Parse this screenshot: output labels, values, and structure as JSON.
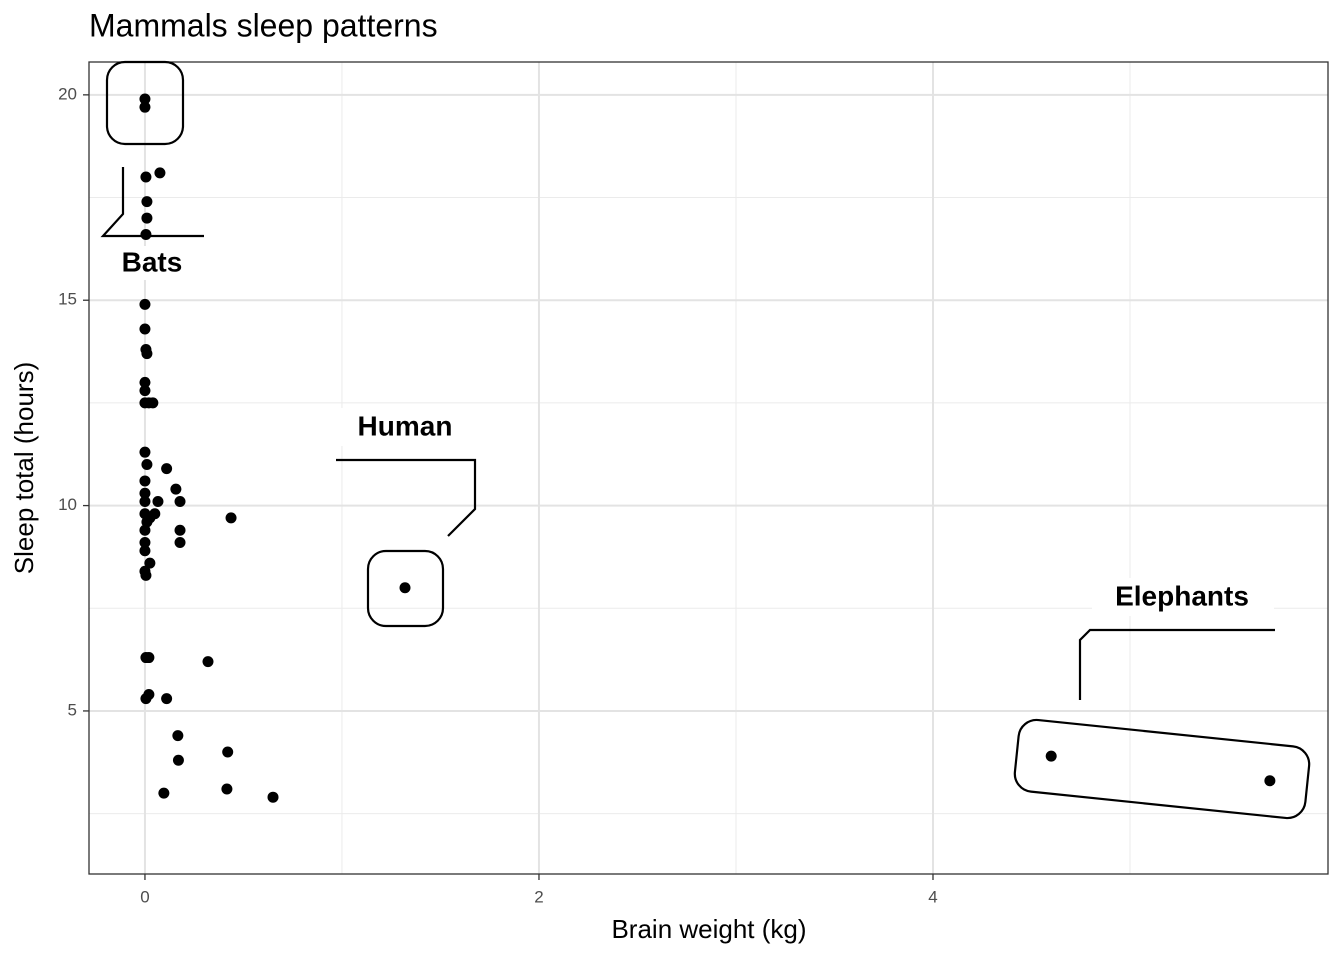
{
  "chart_data": {
    "type": "scatter",
    "title": "Mammals sleep patterns",
    "x_label": "Brain weight (kg)",
    "y_label": "Sleep total (hours)",
    "x": [
      0,
      0,
      0.076,
      0.005,
      0.01,
      0.01,
      0.005,
      0,
      0,
      0.005,
      0.01,
      0,
      0,
      0,
      0.02,
      0.04,
      0,
      0.01,
      0.11,
      0,
      0.157,
      0,
      0,
      0.066,
      0.178,
      0.437,
      0,
      0.025,
      0.05,
      0.01,
      0,
      0.178,
      0,
      0.178,
      0,
      0.025,
      0,
      0.005,
      1.32,
      0.005,
      0.02,
      0.32,
      0.02,
      0.005,
      0.11,
      0.167,
      0.42,
      0.17,
      0.096,
      0.416,
      0.65,
      4.6,
      5.71
    ],
    "values": [
      19.9,
      19.7,
      18.1,
      18.0,
      17.4,
      17.0,
      16.6,
      14.9,
      14.3,
      13.8,
      13.7,
      13.0,
      12.8,
      12.5,
      12.5,
      12.5,
      11.3,
      11.0,
      10.9,
      10.6,
      10.4,
      10.3,
      10.1,
      10.1,
      10.1,
      9.7,
      9.8,
      9.7,
      9.8,
      9.6,
      9.4,
      9.4,
      9.1,
      9.1,
      8.9,
      8.6,
      8.4,
      8.3,
      8.0,
      6.3,
      6.3,
      6.2,
      5.4,
      5.3,
      5.3,
      4.4,
      4.0,
      3.8,
      3.0,
      3.1,
      2.9,
      3.9,
      3.3
    ],
    "color": "#000000",
    "xlim": [
      -0.284,
      6.005
    ],
    "xticks": [
      0,
      2,
      4
    ],
    "minor_xticks": [
      1,
      3,
      5
    ],
    "ylim": [
      1.03,
      20.8
    ],
    "yticks": [
      5,
      10,
      15,
      20
    ],
    "minor_yticks": [
      2.5,
      7.5,
      12.5,
      17.5
    ],
    "grid": true,
    "annotations": [
      "Bats",
      "Human",
      "Elephants"
    ]
  }
}
